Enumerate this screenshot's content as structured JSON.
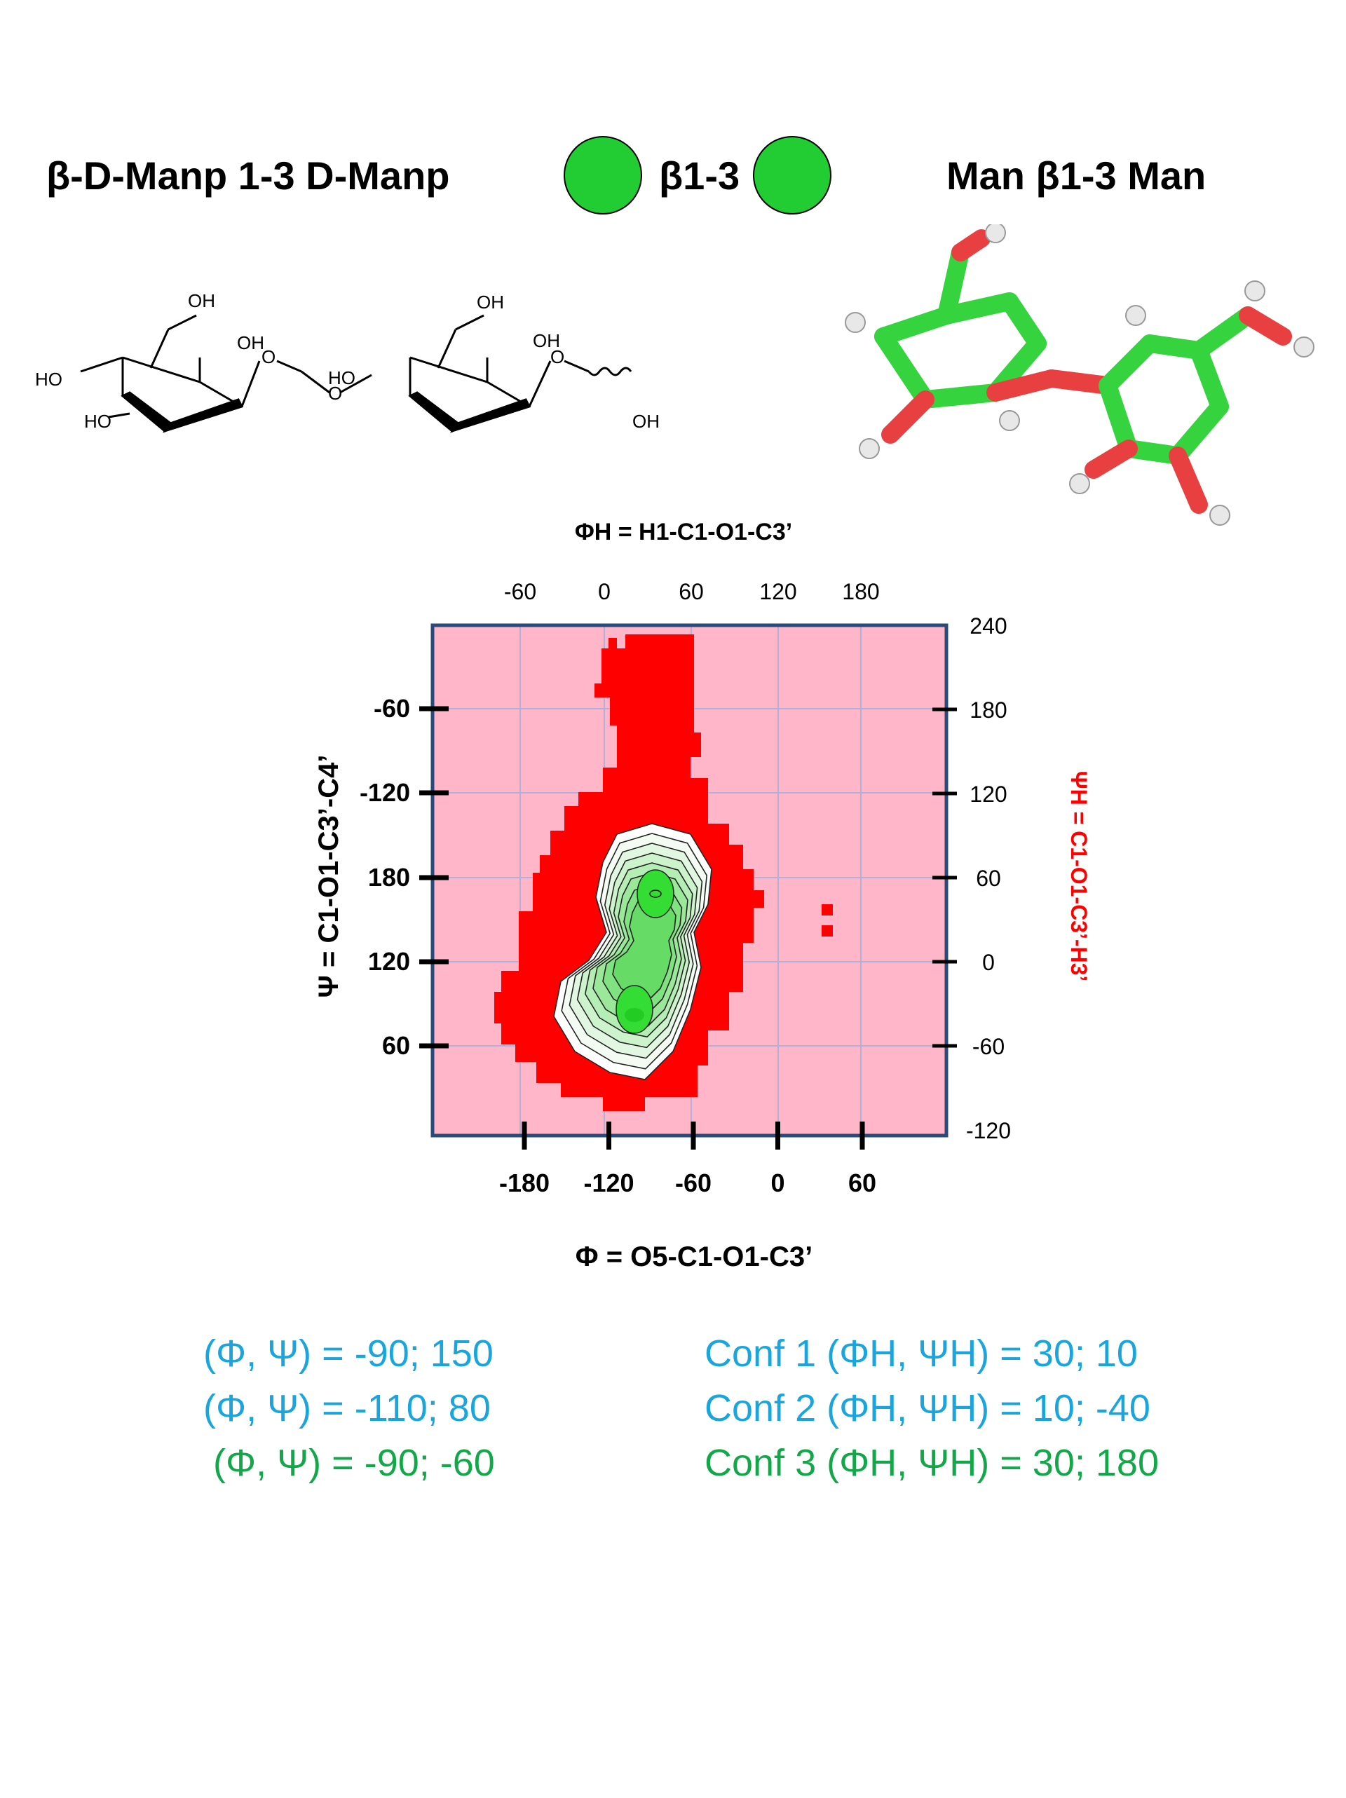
{
  "header": {
    "left_title": "β-D-Manp 1-3 D-Manp",
    "linkage_label": "β1-3",
    "right_title": "Man β1-3 Man",
    "monosaccharide_color": "#22cc33"
  },
  "structure": {
    "oh_labels": [
      "OH",
      "OH",
      "HO",
      "HO",
      "O",
      "OH",
      "OH",
      "HO",
      "O",
      "O",
      "OH"
    ]
  },
  "chart_data": {
    "type": "heatmap",
    "title": "",
    "xlabel": "Φ = O5-C1-O1-C3’",
    "ylabel": "Ψ = C1-O1-C3’-C4’",
    "x2label": "ΦH = H1-C1-O1-C3’",
    "y2label": "ΨH = C1-O1-C3’-H3’",
    "x_ticks": [
      "-180",
      "-120",
      "-60",
      "0",
      "60"
    ],
    "y_ticks": [
      "-60",
      "-120",
      "180",
      "120",
      "60"
    ],
    "x2_ticks": [
      "-60",
      "0",
      "60",
      "120",
      "180"
    ],
    "y2_ticks": [
      "240",
      "180",
      "120",
      "60",
      "0",
      "-60",
      "-120"
    ],
    "colors": {
      "background": "#ffb6c8",
      "allowed": "#ff0000",
      "low_energy": "#33dd33",
      "contour": "#000000",
      "frame": "#2a4a7a"
    },
    "minima": [
      {
        "phi": -90,
        "psi": 150
      },
      {
        "phi": -110,
        "psi": 80
      },
      {
        "phi": -90,
        "psi": -60
      }
    ]
  },
  "conformers": {
    "left": [
      {
        "text": "(Φ, Ψ) = -90; 150",
        "color": "#1aa6dc"
      },
      {
        "text": "(Φ, Ψ) = -110; 80",
        "color": "#1aa6dc"
      },
      {
        "text": "(Φ, Ψ) = -90; -60",
        "color": "#12a84a"
      }
    ],
    "right": [
      {
        "text": "Conf 1 (ΦH, ΨH) = 30; 10",
        "color": "#1aa6dc"
      },
      {
        "text": "Conf 2 (ΦH, ΨH) = 10; -40",
        "color": "#1aa6dc"
      },
      {
        "text": "Conf 3 (ΦH, ΨH) = 30; 180",
        "color": "#12a84a"
      }
    ]
  }
}
